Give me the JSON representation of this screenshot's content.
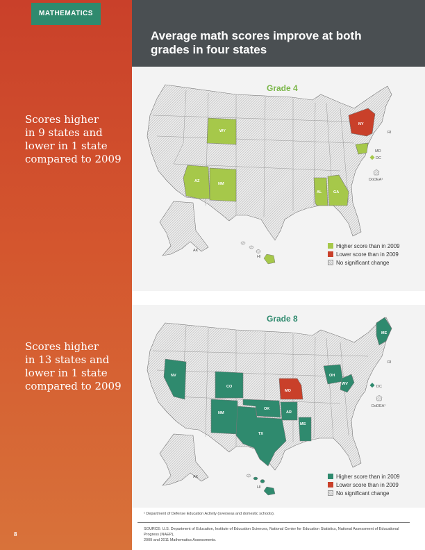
{
  "section_tag": "MATHEMATICS",
  "title_line1": "Average math scores improve at both",
  "title_line2": "grades in four states",
  "colors": {
    "higher_grade4": "#a6c84a",
    "higher_grade8": "#2f8a6e",
    "lower": "#c9402a",
    "no_change": "#c8c8c8"
  },
  "grade4": {
    "label": "Grade 4",
    "callout_line1": "Scores higher",
    "callout_line2": "in 9 states and",
    "callout_line3": "lower in 1 state",
    "callout_line4": "compared to 2009",
    "states": {
      "WY": "WY",
      "AZ": "AZ",
      "NM": "NM",
      "AL": "AL",
      "GA": "GA",
      "NY": "NY",
      "RI": "RI",
      "MD": "MD",
      "DC": "DC",
      "DoDEA": "DoDEA¹",
      "AK": "AK",
      "HI": "HI"
    },
    "legend": {
      "higher": "Higher score than in 2009",
      "lower": "Lower score than in 2009",
      "none": "No significant change"
    }
  },
  "grade8": {
    "label": "Grade 8",
    "callout_line1": "Scores higher",
    "callout_line2": "in 13 states and",
    "callout_line3": "lower in 1 state",
    "callout_line4": "compared to 2009",
    "states": {
      "NV": "NV",
      "CO": "CO",
      "NM": "NM",
      "OK": "OK",
      "TX": "TX",
      "AR": "AR",
      "MO": "MO",
      "MS": "MS",
      "OH": "OH",
      "WV": "WV",
      "ME": "ME",
      "RI": "RI",
      "DC": "DC",
      "DoDEA": "DoDEA¹",
      "AK": "AK",
      "HI": "HI"
    },
    "legend": {
      "higher": "Higher score than in 2009",
      "lower": "Lower score than in 2009",
      "none": "No significant change"
    }
  },
  "footnote": "¹ Department of Defense Education Activity (overseas and domestic schools).",
  "source_line1": "SOURCE: U.S. Department of Education, Institute of Education Sciences, National Center for Education Statistics, National Assessment of Educational Progress (NAEP),",
  "source_line2": "2009 and 2011 Mathematics Assessments.",
  "page_number": "8"
}
